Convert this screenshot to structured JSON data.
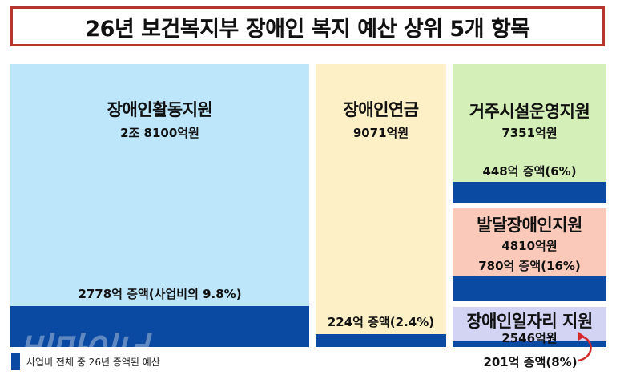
{
  "title": "26년 보건복지부 장애인 복지 예산 상위 5개 항목",
  "chart_data": {
    "type": "treemap",
    "unit": "억원",
    "items": [
      {
        "name": "장애인활동지원",
        "amount_label": "2조 8100억원",
        "value": 28100,
        "increase": 2778,
        "increase_label": "2778억 증액(사업비의 9.8%)",
        "color": "#bde6fb"
      },
      {
        "name": "장애인연금",
        "amount_label": "9071억원",
        "value": 9071,
        "increase": 224,
        "increase_label": "224억 증액(2.4%)",
        "color": "#fdefc6"
      },
      {
        "name": "거주시설운영지원",
        "amount_label": "7351억원",
        "value": 7351,
        "increase": 448,
        "increase_label": "448억 증액(6%)",
        "color": "#d4f0b8"
      },
      {
        "name": "발달장애인지원",
        "amount_label": "4810억원",
        "value": 4810,
        "increase": 780,
        "increase_label": "780억 증액(16%)",
        "color": "#fbc9b9"
      },
      {
        "name": "장애인일자리 지원",
        "amount_label": "2546억원",
        "value": 2546,
        "increase": 201,
        "increase_label": "201억 증액(8%)",
        "color": "#d3d4f3"
      }
    ],
    "legend": "사업비 전체 중 26년 증액된 예산",
    "increase_color": "#0b4aa2"
  },
  "watermark": "비마이너"
}
